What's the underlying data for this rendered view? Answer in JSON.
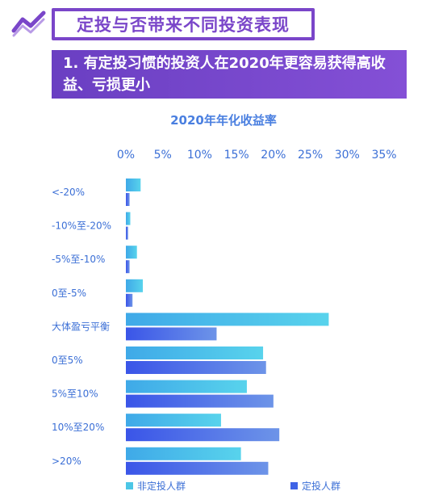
{
  "header": {
    "title": "定投与否带来不同投资表现",
    "subtitle": "1. 有定投习惯的投资人在2020年更容易获得高收益、亏损更小"
  },
  "colors": {
    "accent": "#7a46c9",
    "non_dca": "#4cc6e6",
    "dca": "#3f63e6"
  },
  "chart_data": {
    "type": "bar",
    "orientation": "horizontal",
    "title": "2020年年化收益率",
    "xlim": [
      0,
      35
    ],
    "x_ticks": [
      "0%",
      "5%",
      "10%",
      "15%",
      "20%",
      "25%",
      "30%",
      "35%"
    ],
    "categories": [
      "<-20%",
      "-10%至-20%",
      "-5%至-10%",
      "0至-5%",
      "大体盈亏平衡",
      "0至5%",
      "5%至10%",
      "10%至20%",
      ">20%"
    ],
    "series": [
      {
        "name": "非定投人群",
        "values": [
          2.0,
          0.6,
          1.5,
          2.3,
          27.5,
          18.6,
          16.4,
          12.9,
          15.6
        ]
      },
      {
        "name": "定投人群",
        "values": [
          0.5,
          0.3,
          0.5,
          0.9,
          12.3,
          19.0,
          20.0,
          20.8,
          19.3
        ]
      }
    ],
    "legend_position": "bottom",
    "grid": false
  }
}
